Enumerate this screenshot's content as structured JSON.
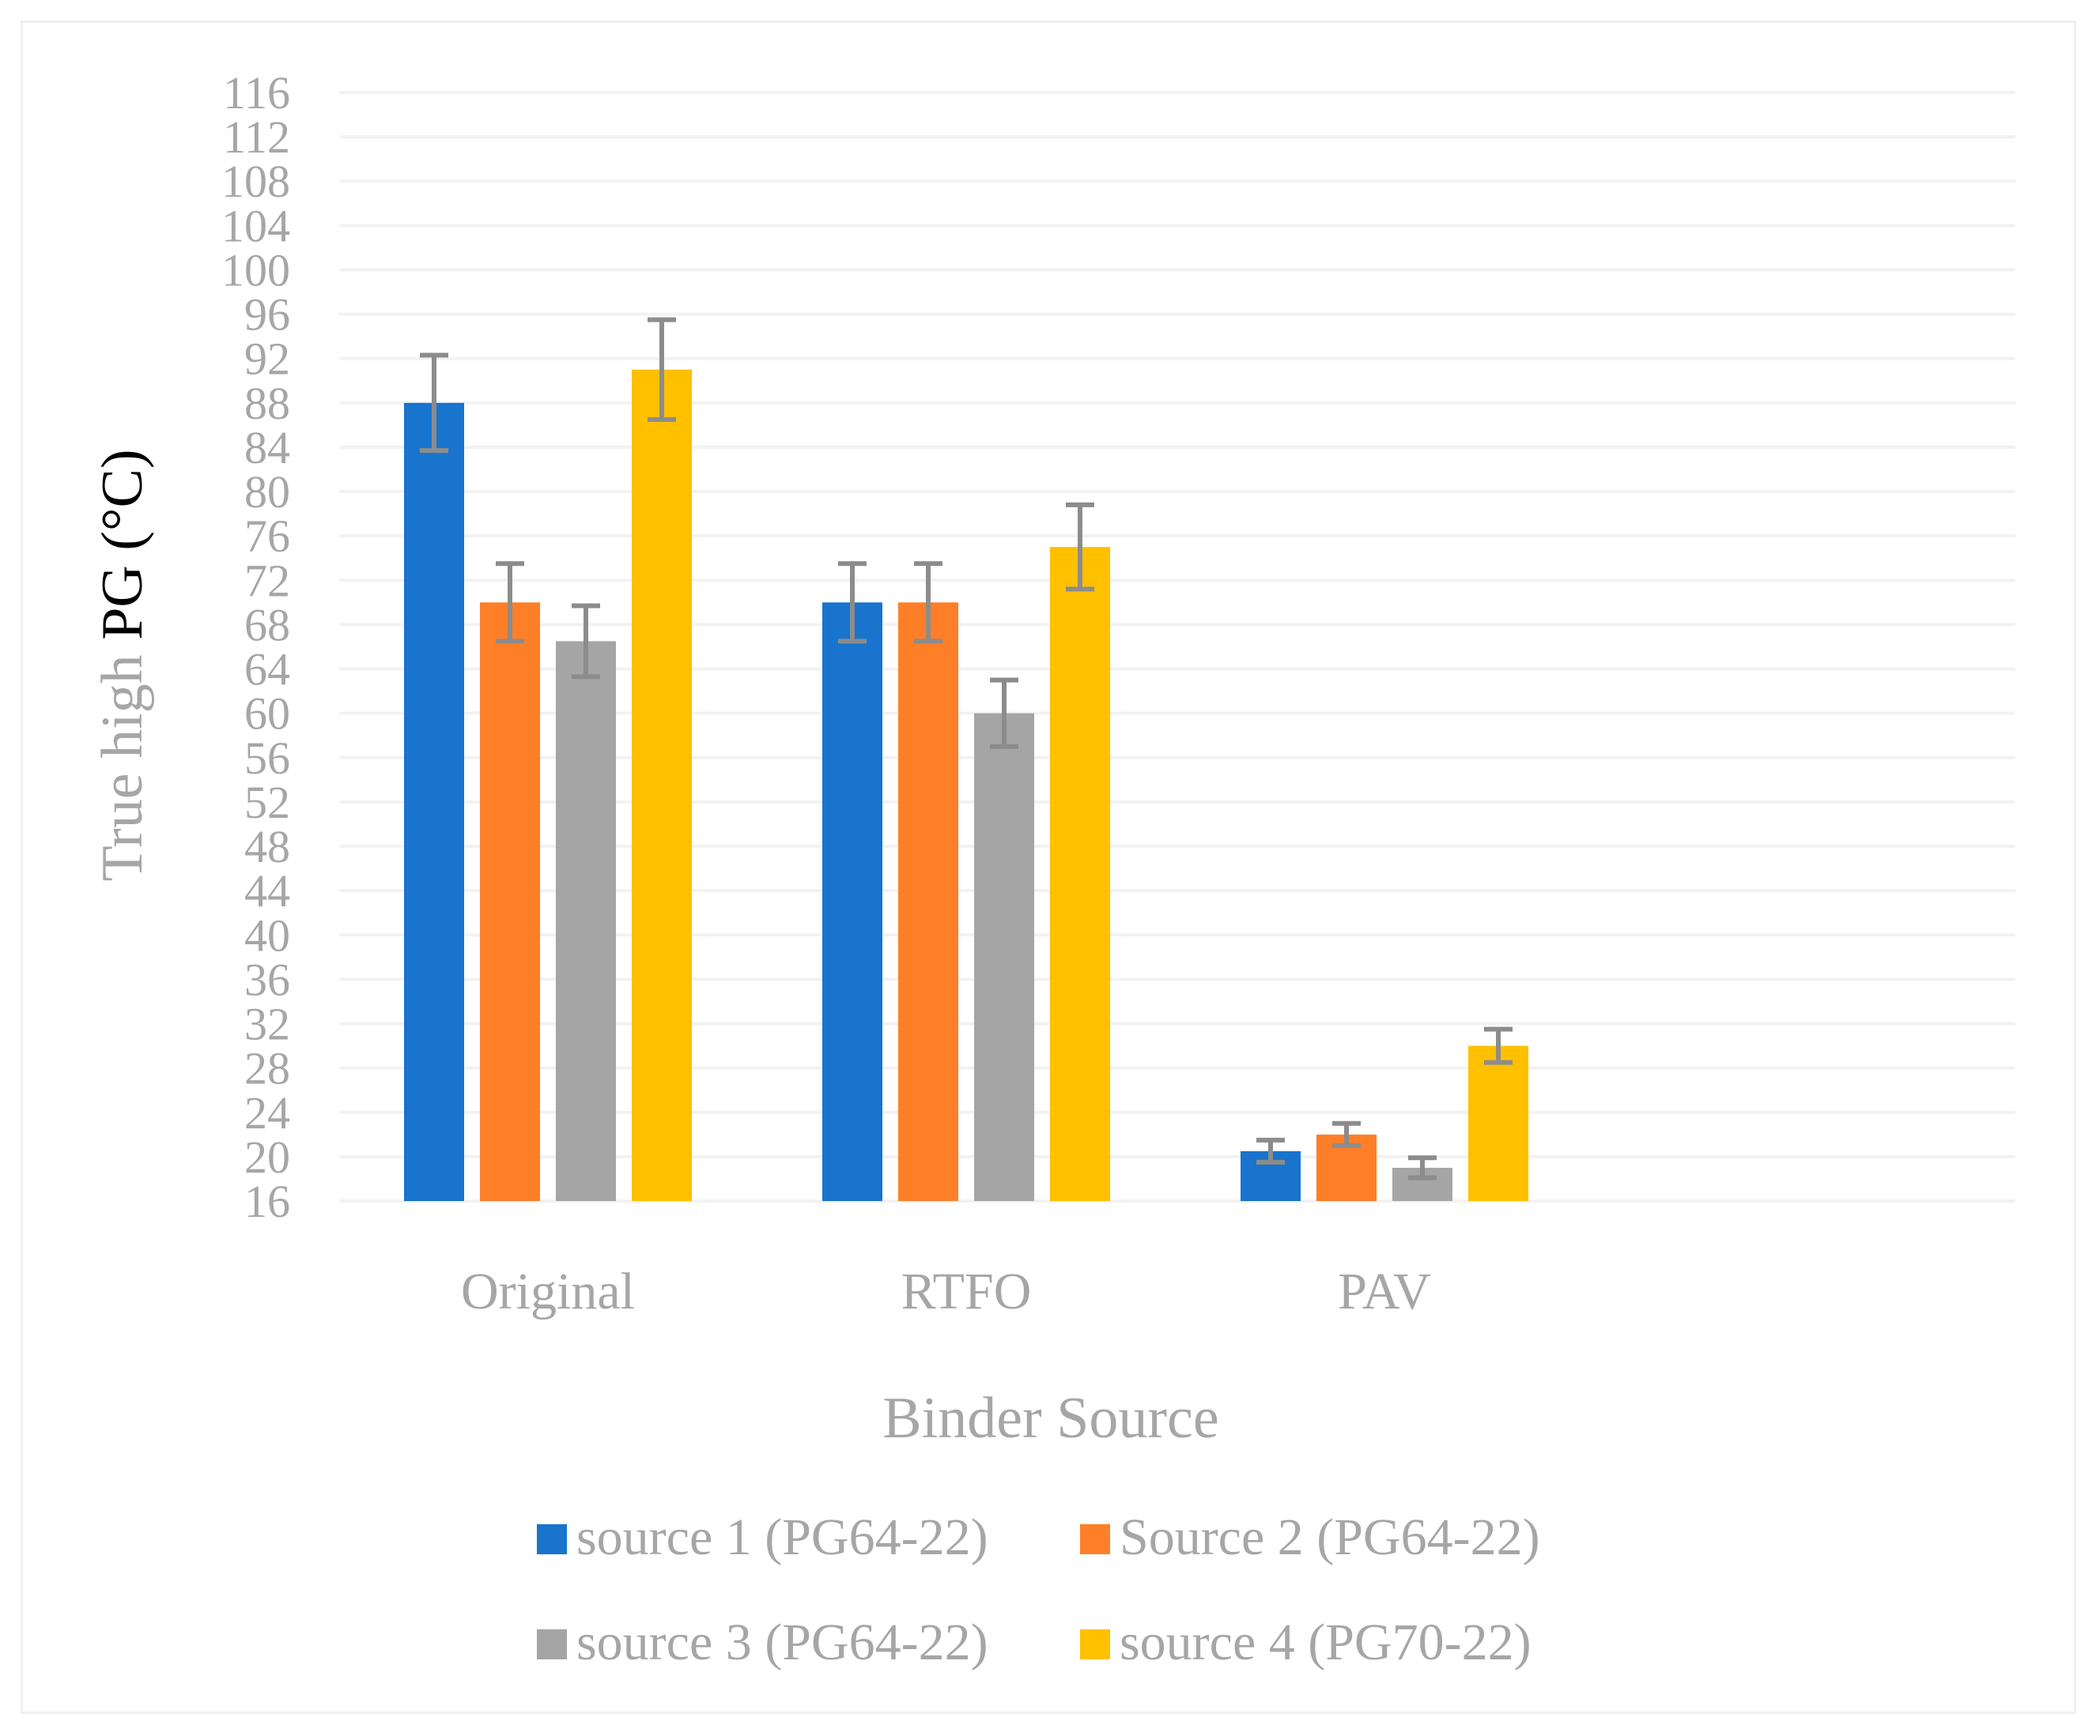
{
  "chart_data": {
    "type": "bar",
    "title": "",
    "xlabel": "Binder Source",
    "ylabel_light": "True high ",
    "ylabel_dark": "PG (°C)",
    "ylim": [
      16,
      116
    ],
    "ytick_step": 4,
    "yticks": [
      "16",
      "20",
      "24",
      "28",
      "32",
      "36",
      "40",
      "44",
      "48",
      "52",
      "56",
      "60",
      "64",
      "68",
      "72",
      "76",
      "80",
      "84",
      "88",
      "92",
      "96",
      "100",
      "104",
      "108",
      "112",
      "116"
    ],
    "categories": [
      "Original",
      "RTFO",
      "PAV"
    ],
    "grid": true,
    "legend_position": "bottom",
    "series": [
      {
        "name": "source 1 (PG64-22)",
        "color": "#1874cd",
        "values": [
          88,
          70,
          20.5
        ],
        "error": [
          4.3,
          3.5,
          1.0
        ]
      },
      {
        "name": "Source 2 (PG64-22)",
        "color": "#fe7f27",
        "values": [
          70,
          70,
          22
        ],
        "error": [
          3.5,
          3.5,
          1.0
        ]
      },
      {
        "name": "source 3 (PG64-22)",
        "color": "#a5a5a5",
        "values": [
          66.5,
          60,
          19
        ],
        "error": [
          3.2,
          3.0,
          0.9
        ]
      },
      {
        "name": "source 4 (PG70-22)",
        "color": "#ffc000",
        "values": [
          91,
          75,
          30
        ],
        "error": [
          4.5,
          3.8,
          1.5
        ]
      }
    ],
    "error_bar_color": "#8c8c8c"
  }
}
